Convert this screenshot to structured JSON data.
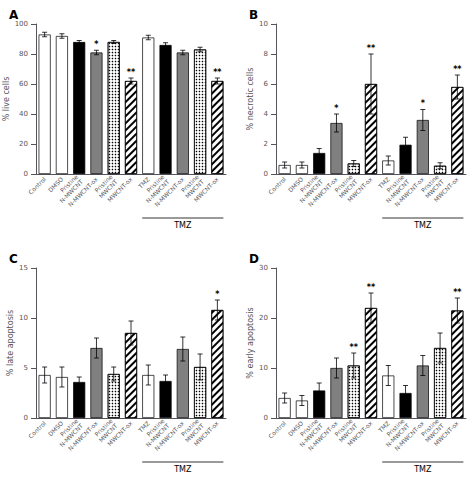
{
  "chart_data": [
    {
      "type": "bar",
      "title": "A",
      "categories": [
        "Control",
        "DMSO",
        "Pristine\nN-MWCNT",
        "N-MWCNT-ox",
        "Pristine\nMWCNT",
        "MWCNT-ox",
        "TMZ",
        "Pristine\nN-MWCNT",
        "N-MWCNT-ox",
        "Pristine\nMWCNT",
        "MWCNT-ox"
      ],
      "values": [
        93,
        92,
        88,
        81,
        88,
        62,
        91,
        86,
        81,
        83,
        62
      ],
      "errors": [
        1.5,
        1.5,
        1.0,
        1.5,
        1.0,
        2.0,
        1.5,
        1.5,
        1.5,
        1.5,
        2.0
      ],
      "annotations": [
        null,
        null,
        null,
        "*",
        null,
        "**",
        null,
        null,
        null,
        null,
        "**"
      ],
      "colors": [
        "white",
        "white",
        "black",
        "gray",
        "white",
        "white",
        "white",
        "black",
        "gray",
        "white",
        "white"
      ],
      "ylabel": "% live cells",
      "ylim": [
        0,
        100
      ],
      "yticks": [
        0,
        20,
        40,
        60,
        80,
        100
      ],
      "grid": false,
      "bracket": {
        "label": "TMZ",
        "from": 6,
        "to": 10
      }
    },
    {
      "type": "bar",
      "title": "B",
      "categories": [
        "Control",
        "DMSO",
        "Pristine\nN-MWCNT",
        "N-MWCNT-ox",
        "Pristine\nMWCNT",
        "MWCNT-ox",
        "TMZ",
        "Pristine\nN-MWCNT",
        "N-MWCNT-ox",
        "Pristine\nMWCNT",
        "MWCNT-ox"
      ],
      "values": [
        0.6,
        0.6,
        1.4,
        3.4,
        0.7,
        6.0,
        0.9,
        1.95,
        3.6,
        0.55,
        5.8
      ],
      "errors": [
        0.2,
        0.2,
        0.3,
        0.6,
        0.2,
        2.0,
        0.3,
        0.5,
        0.7,
        0.2,
        0.8
      ],
      "annotations": [
        null,
        null,
        null,
        "*",
        null,
        "**",
        null,
        null,
        "*",
        null,
        "**"
      ],
      "colors": [
        "white",
        "white",
        "black",
        "gray",
        "white",
        "white",
        "white",
        "black",
        "gray",
        "white",
        "white"
      ],
      "ylabel": "% necrotic cells",
      "ylim": [
        0,
        10
      ],
      "yticks": [
        0,
        2,
        4,
        6,
        8,
        10
      ],
      "grid": false,
      "bracket": {
        "label": "TMZ",
        "from": 6,
        "to": 10
      }
    },
    {
      "type": "bar",
      "title": "C",
      "categories": [
        "Control",
        "DMSO",
        "Pristine\nN-MWCNT",
        "N-MWCNT-ox",
        "Pristine\nMWCNT",
        "MWCNT-ox",
        "TMZ",
        "Pristine\nN-MWCNT",
        "N-MWCNT-ox",
        "Pristine\nMWCNT",
        "MWCNT-ox"
      ],
      "values": [
        4.3,
        4.1,
        3.6,
        7.0,
        4.4,
        8.5,
        4.3,
        3.7,
        6.9,
        5.1,
        10.8
      ],
      "errors": [
        0.8,
        1.0,
        0.5,
        1.0,
        0.7,
        1.2,
        1.0,
        0.6,
        1.2,
        1.3,
        1.0
      ],
      "annotations": [
        null,
        null,
        null,
        null,
        null,
        null,
        null,
        null,
        null,
        null,
        "*"
      ],
      "colors": [
        "white",
        "white",
        "black",
        "gray",
        "white",
        "white",
        "white",
        "black",
        "gray",
        "white",
        "white"
      ],
      "ylabel": "% late apoptosis",
      "ylim": [
        0,
        15
      ],
      "yticks": [
        0,
        5,
        10,
        15
      ],
      "grid": false,
      "bracket": {
        "label": "TMZ",
        "from": 6,
        "to": 10
      }
    },
    {
      "type": "bar",
      "title": "D",
      "categories": [
        "Control",
        "DMSO",
        "Pristine\nN-MWCNT",
        "N-MWCNT-ox",
        "Pristine\nMWCNT",
        "MWCNT-ox",
        "TMZ",
        "Pristine\nN-MWCNT",
        "N-MWCNT-ox",
        "Pristine\nMWCNT",
        "MWCNT-ox"
      ],
      "values": [
        4.0,
        3.5,
        5.5,
        10.0,
        10.5,
        22.0,
        8.5,
        5.0,
        10.5,
        14.0,
        21.5
      ],
      "errors": [
        1.0,
        1.0,
        1.5,
        2.0,
        2.5,
        3.0,
        2.0,
        1.5,
        2.0,
        3.0,
        2.5
      ],
      "annotations": [
        null,
        null,
        null,
        null,
        "**",
        "**",
        null,
        null,
        null,
        null,
        "**"
      ],
      "colors": [
        "white",
        "white",
        "black",
        "gray",
        "white",
        "white",
        "white",
        "black",
        "gray",
        "white",
        "white"
      ],
      "ylabel": "% early apoptosis",
      "ylim": [
        0,
        30
      ],
      "yticks": [
        0,
        10,
        20,
        30
      ],
      "grid": false,
      "bracket": {
        "label": "TMZ",
        "from": 6,
        "to": 10
      }
    }
  ]
}
